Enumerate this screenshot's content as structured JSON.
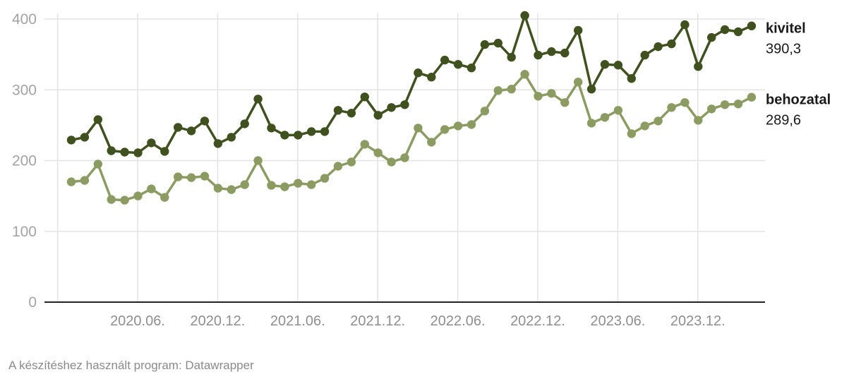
{
  "chart_data": {
    "type": "line",
    "title": "",
    "xlabel": "",
    "ylabel": "",
    "ylim": [
      0,
      400
    ],
    "yticks": [
      0,
      100,
      200,
      300,
      400
    ],
    "grid": true,
    "x_start": "2020.01.",
    "x_ticks": [
      "2020.06.",
      "2020.12.",
      "2021.06.",
      "2021.12.",
      "2022.06.",
      "2022.12.",
      "2023.06.",
      "2023.12."
    ],
    "series": [
      {
        "name": "kivitel",
        "value_label": "390,3",
        "color": "#41501f",
        "values": [
          229,
          233,
          258,
          214,
          212,
          211,
          225,
          213,
          247,
          242,
          256,
          224,
          233,
          252,
          287,
          246,
          236,
          236,
          241,
          241,
          271,
          267,
          290,
          264,
          275,
          279,
          324,
          318,
          342,
          336,
          331,
          364,
          366,
          346,
          405,
          349,
          354,
          352,
          384,
          301,
          336,
          335,
          316,
          349,
          361,
          365,
          392,
          333,
          374,
          385,
          382,
          390.3
        ]
      },
      {
        "name": "behozatal",
        "value_label": "289,6",
        "color": "#8c9b62",
        "values": [
          170,
          172,
          195,
          145,
          144,
          150,
          160,
          148,
          177,
          176,
          178,
          161,
          159,
          166,
          200,
          165,
          163,
          168,
          166,
          175,
          192,
          198,
          223,
          211,
          198,
          204,
          246,
          226,
          244,
          249,
          251,
          270,
          299,
          301,
          322,
          291,
          295,
          282,
          311,
          253,
          261,
          271,
          238,
          249,
          256,
          275,
          282,
          257,
          273,
          279,
          280,
          289.6
        ]
      }
    ]
  },
  "footer": {
    "credit": "A készítéshez használt program: Datawrapper"
  }
}
